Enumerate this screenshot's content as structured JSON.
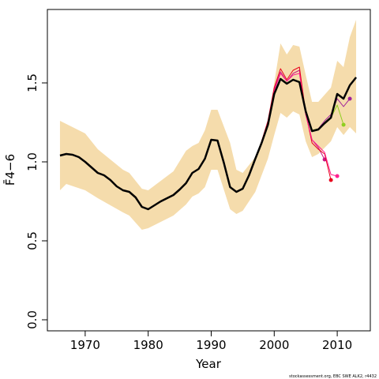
{
  "chart_data": {
    "type": "line",
    "xlabel": "Year",
    "ylabel": "F̄4−6",
    "footer": "stockassessment.org, EBC SWE ALK2, r4432",
    "xlim": [
      1964,
      2015.25
    ],
    "ylim": [
      -0.07,
      1.965
    ],
    "xticks": [
      1970,
      1980,
      1990,
      2000,
      2010
    ],
    "yticks": [
      {
        "value": 0,
        "label": "0.0"
      },
      0.5,
      {
        "value": 1,
        "label": "1.0"
      },
      1.5
    ],
    "band": {
      "color": "#f5dcac",
      "x": [
        1966,
        1967,
        1970,
        1972,
        1976,
        1977,
        1979,
        1980,
        1984,
        1986,
        1987,
        1988,
        1989,
        1990,
        1991,
        1993,
        1994,
        1995,
        1997,
        1999,
        2000,
        2001,
        2002,
        2003,
        2004,
        2005,
        2006,
        2007,
        2009,
        2010,
        2011,
        2012,
        2013
      ],
      "upper": [
        1.26,
        1.24,
        1.18,
        1.08,
        0.95,
        0.93,
        0.83,
        0.82,
        0.94,
        1.07,
        1.1,
        1.12,
        1.2,
        1.33,
        1.33,
        1.12,
        0.95,
        0.93,
        1.03,
        1.25,
        1.5,
        1.75,
        1.68,
        1.74,
        1.73,
        1.55,
        1.38,
        1.38,
        1.47,
        1.64,
        1.6,
        1.79,
        1.9
      ],
      "lower": [
        0.82,
        0.86,
        0.82,
        0.77,
        0.68,
        0.66,
        0.57,
        0.58,
        0.66,
        0.73,
        0.78,
        0.8,
        0.84,
        0.95,
        0.95,
        0.7,
        0.67,
        0.69,
        0.81,
        1.02,
        1.17,
        1.31,
        1.28,
        1.32,
        1.3,
        1.13,
        1.03,
        1.05,
        1.13,
        1.22,
        1.17,
        1.22,
        1.18
      ]
    },
    "series": [
      {
        "color": "#c71585",
        "x": [
          1998,
          1999,
          2000,
          2001,
          2002,
          2003,
          2004,
          2005,
          2006,
          2007,
          2008
        ],
        "values": [
          1.13,
          1.25,
          1.46,
          1.57,
          1.51,
          1.56,
          1.58,
          1.3,
          1.14,
          1.09,
          1.015
        ]
      },
      {
        "color": "#e8001c",
        "x": [
          1998,
          1999,
          2000,
          2001,
          2002,
          2003,
          2004,
          2005,
          2006,
          2007,
          2008,
          2009
        ],
        "values": [
          1.13,
          1.26,
          1.47,
          1.59,
          1.52,
          1.58,
          1.6,
          1.31,
          1.12,
          1.08,
          1.05,
          0.885
        ]
      },
      {
        "color": "#ff1f8f",
        "x": [
          1998,
          1999,
          2000,
          2001,
          2002,
          2003,
          2004,
          2005,
          2006,
          2007,
          2008,
          2009,
          2010
        ],
        "values": [
          1.12,
          1.25,
          1.45,
          1.56,
          1.51,
          1.55,
          1.56,
          1.3,
          1.14,
          1.1,
          1.06,
          0.92,
          0.91
        ]
      },
      {
        "color": "#8fce1f",
        "x": [
          1998,
          1999,
          2000,
          2001,
          2002,
          2003,
          2004,
          2005,
          2006,
          2007,
          2008,
          2009,
          2010,
          2011
        ],
        "values": [
          1.12,
          1.24,
          1.43,
          1.53,
          1.5,
          1.52,
          1.51,
          1.32,
          1.2,
          1.21,
          1.24,
          1.28,
          1.36,
          1.235
        ]
      },
      {
        "color": "#a0209a",
        "x": [
          1998,
          1999,
          2000,
          2001,
          2002,
          2003,
          2004,
          2005,
          2006,
          2007,
          2008,
          2009,
          2010,
          2011,
          2012
        ],
        "values": [
          1.12,
          1.235,
          1.43,
          1.525,
          1.495,
          1.52,
          1.505,
          1.32,
          1.195,
          1.21,
          1.26,
          1.3,
          1.4,
          1.35,
          1.4
        ]
      },
      {
        "color": "#000000",
        "width": 2.5,
        "x": [
          1966,
          1967,
          1968,
          1969,
          1970,
          1971,
          1972,
          1973,
          1974,
          1975,
          1976,
          1977,
          1978,
          1979,
          1980,
          1981,
          1982,
          1983,
          1984,
          1985,
          1986,
          1987,
          1988,
          1989,
          1990,
          1991,
          1992,
          1993,
          1994,
          1995,
          1996,
          1997,
          1998,
          1999,
          2000,
          2001,
          2002,
          2003,
          2004,
          2005,
          2006,
          2007,
          2008,
          2009,
          2010,
          2011,
          2012,
          2013
        ],
        "values": [
          1.04,
          1.05,
          1.045,
          1.03,
          1.0,
          0.965,
          0.93,
          0.915,
          0.885,
          0.845,
          0.82,
          0.81,
          0.775,
          0.715,
          0.7,
          0.725,
          0.75,
          0.77,
          0.79,
          0.825,
          0.865,
          0.93,
          0.955,
          1.02,
          1.14,
          1.135,
          0.995,
          0.84,
          0.81,
          0.83,
          0.915,
          1.02,
          1.12,
          1.235,
          1.43,
          1.525,
          1.495,
          1.52,
          1.505,
          1.32,
          1.195,
          1.205,
          1.245,
          1.28,
          1.43,
          1.4,
          1.485,
          1.535
        ]
      }
    ]
  }
}
